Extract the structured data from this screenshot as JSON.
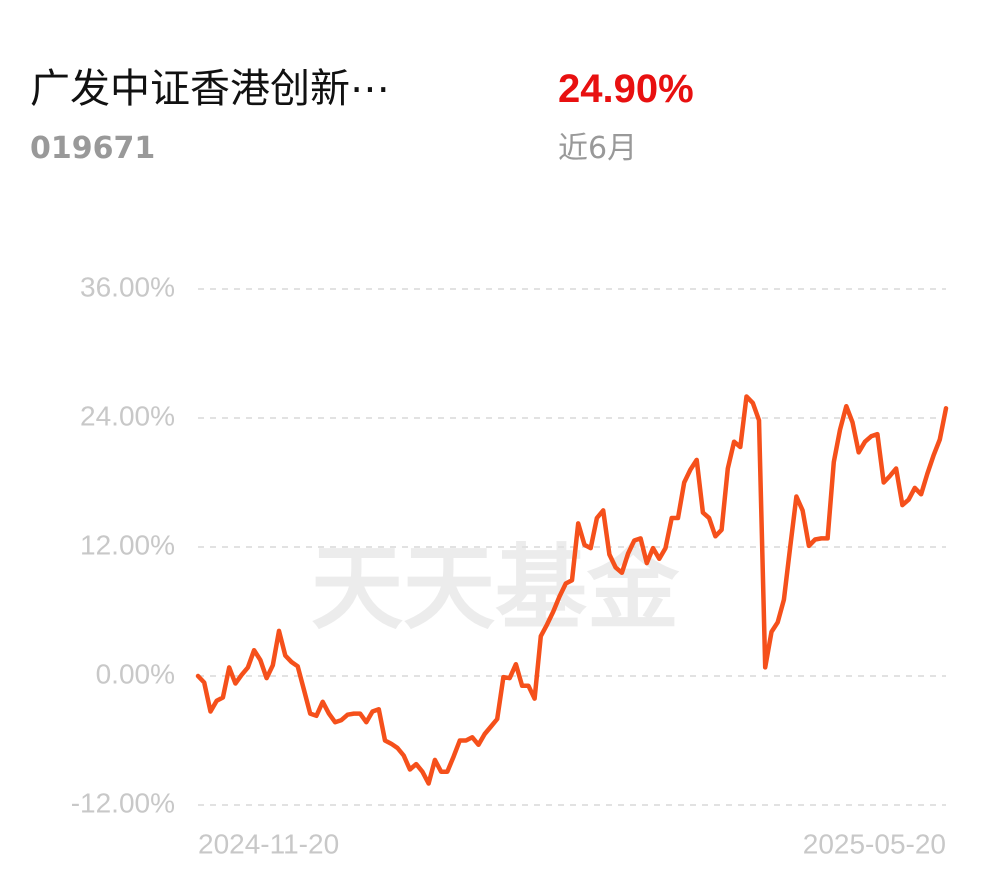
{
  "header": {
    "name": "广发中证香港创新⋯",
    "code": "019671",
    "return": "24.90%",
    "period": "近6月"
  },
  "chart_data": {
    "type": "line",
    "watermark": "天天基金",
    "categories": [
      "2024-11-20",
      null,
      null,
      null,
      null,
      null,
      null,
      null,
      null,
      null,
      null,
      null,
      null,
      null,
      null,
      null,
      null,
      null,
      null,
      null,
      null,
      null,
      null,
      null,
      null,
      null,
      null,
      null,
      null,
      null,
      null,
      null,
      null,
      null,
      null,
      null,
      null,
      null,
      null,
      null,
      null,
      null,
      null,
      null,
      null,
      null,
      null,
      null,
      null,
      null,
      null,
      null,
      null,
      null,
      null,
      null,
      null,
      null,
      null,
      null,
      null,
      null,
      null,
      null,
      null,
      null,
      null,
      null,
      null,
      null,
      null,
      null,
      null,
      null,
      null,
      null,
      null,
      null,
      null,
      null,
      null,
      null,
      null,
      null,
      null,
      null,
      null,
      null,
      null,
      null,
      null,
      null,
      null,
      null,
      null,
      null,
      null,
      null,
      null,
      null,
      null,
      null,
      null,
      null,
      null,
      null,
      null,
      null,
      null,
      null,
      null,
      null,
      null,
      null,
      null,
      null,
      null,
      null,
      null,
      null,
      "2025-05-20"
    ],
    "values": [
      0,
      -0.6,
      -3.3,
      -2.3,
      -2.0,
      0.8,
      -0.7,
      0.1,
      0.8,
      2.4,
      1.5,
      -0.2,
      1.0,
      4.2,
      1.9,
      1.3,
      0.9,
      -1.3,
      -3.5,
      -3.7,
      -2.4,
      -3.5,
      -4.3,
      -4.1,
      -3.6,
      -3.5,
      -3.5,
      -4.3,
      -3.3,
      -3.1,
      -6.0,
      -6.3,
      -6.7,
      -7.4,
      -8.7,
      -8.2,
      -8.9,
      -10.0,
      -7.8,
      -8.9,
      -8.9,
      -7.5,
      -6.0,
      -6.0,
      -5.7,
      -6.4,
      -5.4,
      -4.7,
      -4.0,
      -0.1,
      -0.2,
      1.1,
      -0.9,
      -0.9,
      -2.1,
      3.7,
      4.8,
      6.0,
      7.4,
      8.6,
      8.9,
      14.2,
      12.2,
      11.9,
      14.7,
      15.4,
      11.3,
      10.1,
      9.6,
      11.4,
      12.6,
      12.8,
      10.5,
      11.9,
      10.9,
      11.9,
      14.7,
      14.7,
      18.0,
      19.2,
      20.1,
      15.2,
      14.7,
      13.0,
      13.6,
      19.3,
      21.8,
      21.3,
      26.0,
      25.4,
      23.8,
      0.8,
      4.1,
      5.0,
      7.1,
      12.0,
      16.7,
      15.4,
      12.1,
      12.7,
      12.8,
      12.8,
      19.9,
      22.9,
      25.1,
      23.6,
      20.8,
      21.8,
      22.3,
      22.5,
      18.0,
      18.6,
      19.3,
      15.9,
      16.4,
      17.5,
      16.9,
      18.8,
      20.5,
      22.0,
      24.9
    ],
    "color": "#f5501b",
    "ylim": [
      -12,
      36
    ],
    "yticks": [
      {
        "value": -12,
        "label": "-12.00%"
      },
      {
        "value": 0,
        "label": "0.00%"
      },
      {
        "value": 12,
        "label": "12.00%"
      },
      {
        "value": 24,
        "label": "24.00%"
      },
      {
        "value": 36,
        "label": "36.00%"
      }
    ],
    "grid": true
  }
}
